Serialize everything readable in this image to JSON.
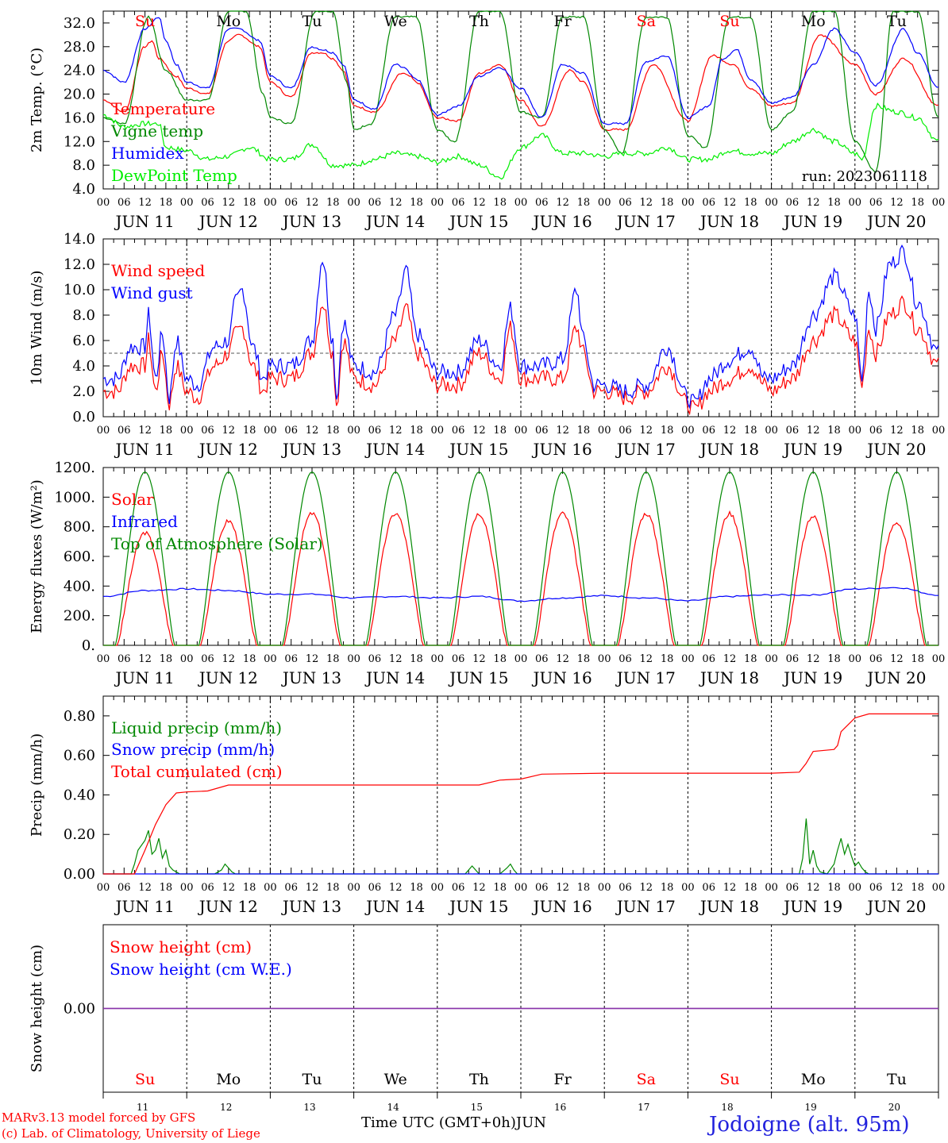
{
  "footer": {
    "credit_line1": "MARv3.13 model forced by GFS",
    "credit_line2": "(c) Lab. of Climatology, University of Liege",
    "x_title": "Time UTC (GMT+0h)",
    "month": "JUN",
    "station": "Jodoigne (alt. 95m)"
  },
  "days": [
    "11",
    "12",
    "13",
    "14",
    "15",
    "16",
    "17",
    "18",
    "19",
    "20"
  ],
  "day_labels": [
    "JUN 11",
    "JUN 12",
    "JUN 13",
    "JUN 14",
    "JUN 15",
    "JUN 16",
    "JUN 17",
    "JUN 18",
    "JUN 19",
    "JUN 20"
  ],
  "weekdays": [
    "Su",
    "Mo",
    "Tu",
    "We",
    "Th",
    "Fr",
    "Sa",
    "Su",
    "Mo",
    "Tu"
  ],
  "weekend_color": "#ff0000",
  "hour_ticks": [
    "00",
    "06",
    "12",
    "18"
  ],
  "last_hour_tick": "00",
  "chart_data": [
    {
      "type": "line",
      "ylabel": "2m Temp. (°C)",
      "ylim": [
        4,
        34
      ],
      "yticks": [
        "4.0",
        "8.0",
        "12.0",
        "16.0",
        "20.0",
        "24.0",
        "28.0",
        "32.0"
      ],
      "annotation": "run: 2023061118",
      "x_unit": "hours since JUN 11 00 UTC",
      "series": [
        {
          "name": "Temperature",
          "color": "#ff0000",
          "x": [
            0,
            6,
            12,
            14,
            16,
            21,
            24,
            30,
            36,
            39,
            45,
            48,
            54,
            60,
            63,
            66,
            69,
            72,
            78,
            86,
            88,
            90,
            96,
            102,
            108,
            114,
            120,
            126,
            134,
            138,
            144,
            150,
            158,
            168,
            175,
            181,
            186,
            192,
            198,
            206,
            216,
            222,
            230,
            240
          ],
          "y": [
            19,
            17,
            28,
            29,
            26,
            23,
            21,
            20,
            29,
            30,
            28,
            22,
            19.5,
            27,
            27,
            26,
            24,
            18,
            17,
            23.5,
            23,
            22,
            16,
            15.5,
            23.5,
            25,
            19,
            14.5,
            24,
            22,
            14,
            14,
            25,
            15.5,
            26.5,
            25,
            21,
            18,
            18.5,
            30,
            25,
            20,
            26,
            18
          ]
        },
        {
          "name": "Vigne temp",
          "color": "#008800",
          "x": [
            0,
            6,
            13,
            18,
            24,
            30,
            36,
            41,
            46,
            48,
            54,
            61,
            66,
            70,
            72,
            77,
            84,
            90,
            96,
            101,
            108,
            114,
            120,
            126,
            132,
            138,
            144,
            149,
            156,
            162,
            168,
            173,
            180,
            186,
            192,
            198,
            204,
            210,
            216,
            222,
            227,
            234,
            240
          ],
          "y": [
            16,
            15,
            33,
            24,
            19,
            19,
            34,
            34,
            20,
            16,
            15,
            34,
            34,
            22,
            14,
            15,
            33,
            33,
            14,
            12,
            34,
            34,
            17,
            16,
            33,
            33,
            14,
            10,
            33,
            33,
            13,
            11,
            33,
            33,
            14,
            17,
            34,
            34,
            12,
            7,
            34,
            34,
            16
          ]
        },
        {
          "name": "Humidex",
          "color": "#0000ff",
          "x": [
            0,
            6,
            12,
            16,
            18,
            21,
            24,
            30,
            36,
            39,
            45,
            48,
            54,
            60,
            63,
            66,
            69,
            72,
            78,
            84,
            86,
            90,
            96,
            102,
            108,
            114,
            120,
            126,
            132,
            138,
            144,
            150,
            156,
            162,
            168,
            174,
            178,
            182,
            186,
            192,
            198,
            204,
            210,
            216,
            222,
            230,
            234,
            240
          ],
          "y": [
            24,
            22,
            31,
            33,
            29,
            25,
            22,
            21,
            31,
            31,
            29,
            23,
            21,
            28,
            27.5,
            27,
            25,
            19,
            17.5,
            25,
            24.5,
            22.5,
            16.5,
            18,
            23,
            24.5,
            21,
            16,
            25,
            23.5,
            15,
            15,
            25.5,
            26.5,
            16,
            18,
            26,
            27.5,
            22.5,
            18.5,
            19.5,
            25,
            31,
            27,
            21.5,
            31,
            27,
            21
          ]
        },
        {
          "name": "DewPoint Temp",
          "color": "#00ee00",
          "x": [
            0,
            6,
            12,
            16,
            18,
            24,
            30,
            36,
            42,
            48,
            54,
            60,
            66,
            72,
            78,
            84,
            90,
            96,
            102,
            108,
            114,
            120,
            126,
            132,
            138,
            144,
            150,
            156,
            162,
            168,
            174,
            180,
            186,
            192,
            198,
            204,
            210,
            216,
            218,
            222,
            228,
            234,
            240
          ],
          "y": [
            16.5,
            14.5,
            15,
            15,
            11,
            10.5,
            9,
            9.5,
            11,
            9,
            9,
            11.5,
            8,
            8,
            9,
            10,
            9.5,
            8.5,
            9.5,
            8,
            6,
            11,
            13,
            10,
            10,
            9.5,
            10,
            10,
            11,
            9,
            9,
            10.5,
            10,
            10,
            12,
            14,
            12,
            10,
            9,
            18,
            17,
            16,
            12
          ]
        }
      ]
    },
    {
      "type": "line",
      "ylabel": "10m Wind (m/s)",
      "ylim": [
        0,
        14
      ],
      "yticks": [
        "0.0",
        "2.0",
        "4.0",
        "6.0",
        "8.0",
        "10.0",
        "12.0",
        "14.0"
      ],
      "reference_line": 5,
      "x_unit": "hours since JUN 11 00 UTC",
      "series": [
        {
          "name": "Wind speed",
          "color": "#ff0000",
          "x": [
            0,
            4,
            8,
            12,
            13,
            15,
            17,
            19,
            21,
            24,
            27,
            32,
            36,
            38,
            40,
            43,
            46,
            48,
            54,
            60,
            63,
            66,
            67,
            69,
            72,
            78,
            84,
            87,
            90,
            96,
            102,
            108,
            114,
            117,
            120,
            126,
            132,
            136,
            138,
            141,
            144,
            150,
            156,
            162,
            168,
            170,
            174,
            180,
            186,
            190,
            192,
            198,
            204,
            210,
            216,
            218,
            220,
            222,
            226,
            230,
            234,
            240
          ],
          "y": [
            2,
            2,
            4,
            4,
            6,
            2,
            5,
            1,
            4,
            2,
            1.5,
            4,
            5,
            6.5,
            7,
            4,
            2,
            3,
            3,
            5,
            9,
            5,
            1,
            6,
            3,
            2.5,
            6,
            8.5,
            5,
            2.5,
            2.5,
            5,
            3,
            7,
            3,
            3,
            3,
            7,
            5,
            2,
            2,
            1.5,
            2,
            4,
            1,
            0.5,
            2,
            3,
            4,
            2.5,
            2,
            3,
            6,
            8,
            6,
            2.5,
            7,
            5,
            8,
            9,
            7,
            4
          ]
        },
        {
          "name": "Wind gust",
          "color": "#0000ff",
          "x": [
            0,
            4,
            8,
            12,
            13,
            15,
            17,
            19,
            21,
            24,
            27,
            32,
            36,
            38,
            40,
            43,
            46,
            48,
            54,
            60,
            63,
            66,
            67,
            69,
            72,
            78,
            84,
            87,
            90,
            96,
            102,
            108,
            114,
            117,
            120,
            126,
            132,
            136,
            138,
            141,
            144,
            150,
            156,
            162,
            168,
            170,
            174,
            180,
            186,
            190,
            192,
            198,
            204,
            210,
            216,
            218,
            220,
            222,
            226,
            230,
            234,
            240
          ],
          "y": [
            3,
            3,
            5.5,
            5.5,
            8,
            3,
            6.5,
            1.5,
            6,
            3,
            2.5,
            5.5,
            6,
            9,
            10,
            5.5,
            3,
            4,
            4,
            6,
            12.5,
            6,
            1.5,
            7.5,
            4,
            3.5,
            8,
            11.5,
            6.5,
            3.5,
            3.5,
            6,
            4,
            8.5,
            4,
            4,
            4.5,
            10,
            6,
            2.5,
            2.5,
            2,
            2.5,
            5.5,
            1.5,
            1,
            3,
            4.5,
            5.5,
            3,
            3,
            4,
            8,
            11,
            8,
            3,
            10,
            7,
            12,
            13,
            9,
            5
          ]
        }
      ]
    },
    {
      "type": "line",
      "ylabel": "Energy fluxes (W/m²)",
      "ylim": [
        0,
        1200
      ],
      "yticks": [
        "0.",
        "200.",
        "400.",
        "600.",
        "800.",
        "1000.",
        "1200."
      ],
      "x_unit": "hours since JUN 11 00 UTC",
      "series": [
        {
          "name": "Solar",
          "color": "#ff0000",
          "daily_peak": [
            760,
            840,
            890,
            890,
            890,
            890,
            890,
            890,
            870,
            830
          ],
          "daylight_hours": [
            4,
            20
          ]
        },
        {
          "name": "Infrared",
          "color": "#0000ff",
          "x": [
            0,
            12,
            24,
            36,
            48,
            60,
            72,
            84,
            96,
            108,
            120,
            132,
            144,
            156,
            168,
            180,
            192,
            204,
            216,
            228,
            240
          ],
          "y": [
            330,
            370,
            380,
            370,
            345,
            345,
            320,
            330,
            320,
            330,
            300,
            320,
            335,
            320,
            300,
            330,
            340,
            340,
            380,
            390,
            340
          ]
        },
        {
          "name": "Top of Atmosphere (Solar)",
          "color": "#008800",
          "daily_peak": [
            1170,
            1170,
            1170,
            1170,
            1170,
            1170,
            1170,
            1170,
            1170,
            1170
          ],
          "daylight_hours": [
            3.5,
            20.5
          ]
        }
      ]
    },
    {
      "type": "line",
      "ylabel": "Precip (mm/h)",
      "ylim": [
        0,
        0.9
      ],
      "yticks": [
        "0.00",
        "0.20",
        "0.40",
        "0.60",
        "0.80"
      ],
      "x_unit": "hours since JUN 11 00 UTC",
      "series": [
        {
          "name": "Liquid precip (mm/h)",
          "color": "#008800",
          "x": [
            0,
            8,
            9,
            10,
            12,
            13,
            14,
            15,
            16,
            17,
            18,
            19,
            20,
            22,
            24,
            32,
            34,
            35,
            36,
            37,
            38,
            40,
            104,
            106,
            107,
            108,
            114,
            116,
            117,
            118,
            119,
            200,
            201,
            202,
            203,
            204,
            205,
            206,
            208,
            210,
            211,
            212,
            213,
            214,
            215,
            216,
            217,
            218,
            219,
            220,
            240
          ],
          "y": [
            0,
            0,
            0.05,
            0.12,
            0.17,
            0.22,
            0.1,
            0.12,
            0.18,
            0.08,
            0.12,
            0.04,
            0.02,
            0,
            0,
            0,
            0.02,
            0.05,
            0.03,
            0.01,
            0,
            0,
            0,
            0.04,
            0.02,
            0,
            0,
            0.03,
            0.05,
            0.02,
            0,
            0,
            0.08,
            0.28,
            0.05,
            0.12,
            0.04,
            0.01,
            0,
            0.05,
            0.12,
            0.18,
            0.1,
            0.15,
            0.09,
            0.04,
            0.06,
            0.03,
            0.01,
            0,
            0
          ]
        },
        {
          "name": "Snow precip (mm/h)",
          "color": "#0000ff",
          "x": [
            0,
            240
          ],
          "y": [
            0,
            0
          ]
        },
        {
          "name": "Total cumulated (cm)",
          "color": "#ff0000",
          "x": [
            0,
            9,
            12,
            15,
            18,
            21,
            24,
            30,
            36,
            60,
            84,
            108,
            114,
            120,
            126,
            144,
            168,
            192,
            200,
            202,
            204,
            210,
            211,
            212,
            216,
            220,
            240
          ],
          "y": [
            0,
            0,
            0.12,
            0.25,
            0.35,
            0.41,
            0.415,
            0.42,
            0.45,
            0.45,
            0.45,
            0.45,
            0.475,
            0.48,
            0.505,
            0.51,
            0.51,
            0.51,
            0.515,
            0.56,
            0.62,
            0.63,
            0.65,
            0.72,
            0.79,
            0.81,
            0.81
          ]
        }
      ]
    },
    {
      "type": "line",
      "ylabel": "Snow height (cm)",
      "ylim": [
        -1,
        1
      ],
      "yticks": [
        "0.00"
      ],
      "x_unit": "hours since JUN 11 00 UTC",
      "series": [
        {
          "name": "Snow height (cm)",
          "color": "#ff0000",
          "x": [
            0,
            240
          ],
          "y": [
            0,
            0
          ]
        },
        {
          "name": "Snow height (cm W.E.)",
          "color": "#0000ff",
          "x": [
            0,
            240
          ],
          "y": [
            0,
            0
          ]
        }
      ]
    }
  ]
}
